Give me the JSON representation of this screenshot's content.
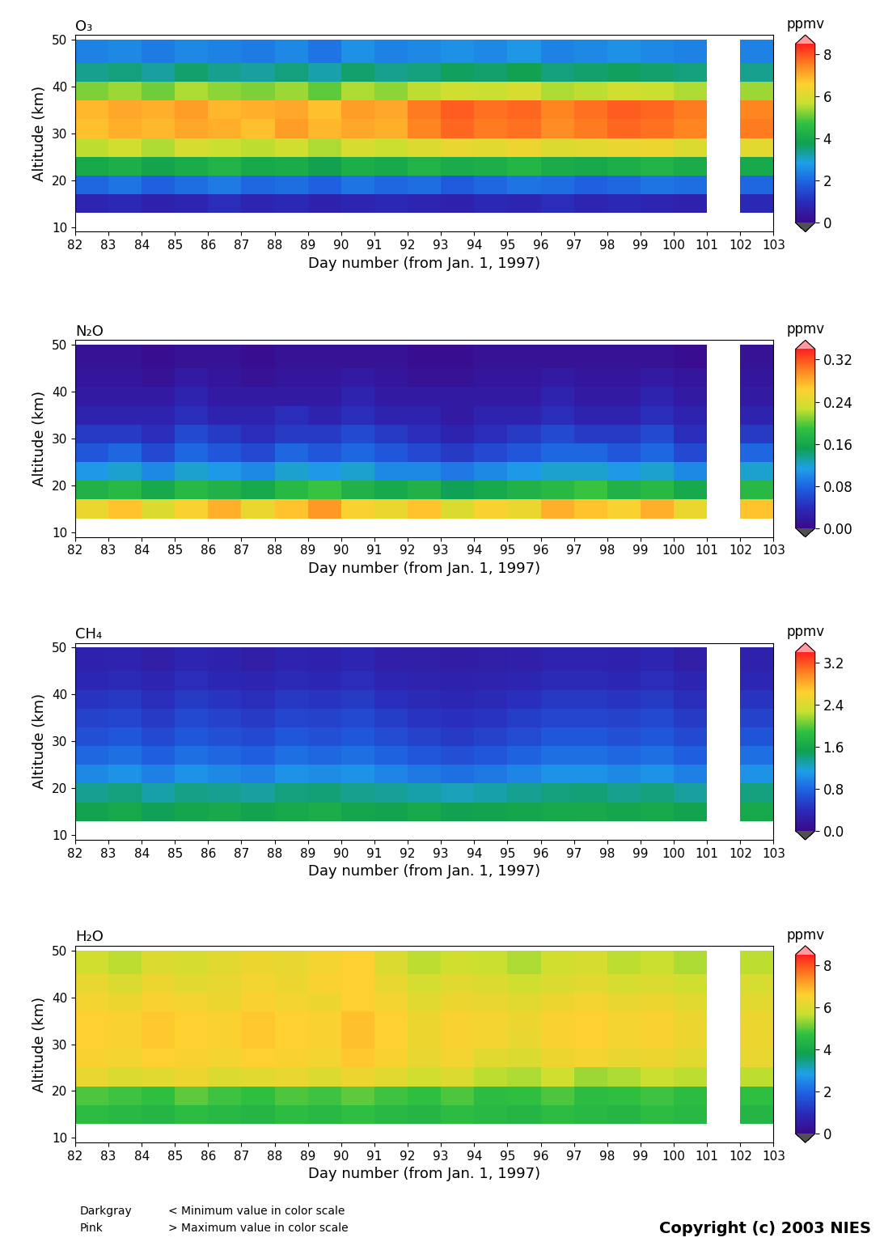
{
  "chart_data": [
    {
      "type": "heatmap",
      "title": "O₃",
      "x_label": "Day number (from Jan. 1, 1997)",
      "y_label": "Altitude (km)",
      "xlim": [
        82,
        103
      ],
      "xticks": [
        82,
        83,
        84,
        85,
        86,
        87,
        88,
        89,
        90,
        91,
        92,
        93,
        94,
        95,
        96,
        97,
        98,
        99,
        100,
        101,
        102,
        103
      ],
      "ylim": [
        9,
        51
      ],
      "yticks": [
        10,
        20,
        30,
        40,
        50
      ],
      "x_edges": [
        82,
        83,
        84,
        85,
        86,
        87,
        88,
        89,
        90,
        91,
        92,
        93,
        94,
        95,
        96,
        97,
        98,
        99,
        100,
        101,
        102,
        103
      ],
      "y_edges": [
        13,
        17,
        21,
        25,
        29,
        33,
        37,
        41,
        45,
        50
      ],
      "cells": [
        [
          0.8,
          0.9,
          0.7,
          0.8,
          1.0,
          0.8,
          0.9,
          0.7,
          0.8,
          0.9,
          0.8,
          0.7,
          0.9,
          0.8,
          1.0,
          0.8,
          0.9,
          0.8,
          0.7,
          null,
          0.9
        ],
        [
          2.0,
          2.2,
          1.9,
          2.1,
          2.3,
          2.0,
          2.1,
          1.9,
          2.2,
          2.0,
          2.1,
          1.8,
          2.0,
          2.2,
          2.1,
          1.9,
          2.0,
          2.2,
          2.1,
          null,
          2.0
        ],
        [
          4.0,
          4.2,
          3.9,
          4.1,
          4.3,
          4.0,
          4.1,
          3.8,
          4.2,
          4.0,
          4.3,
          4.1,
          4.2,
          4.4,
          4.1,
          4.0,
          4.2,
          4.3,
          4.1,
          null,
          4.0
        ],
        [
          5.6,
          5.8,
          5.5,
          5.9,
          5.7,
          5.6,
          5.8,
          5.5,
          5.9,
          5.7,
          6.0,
          6.2,
          6.1,
          6.3,
          6.0,
          6.1,
          6.2,
          6.3,
          6.0,
          null,
          6.1
        ],
        [
          6.8,
          7.0,
          6.9,
          7.1,
          7.0,
          6.8,
          7.2,
          6.9,
          7.1,
          7.0,
          7.5,
          7.8,
          7.6,
          7.7,
          7.4,
          7.6,
          7.8,
          7.7,
          7.5,
          null,
          7.6
        ],
        [
          6.9,
          7.1,
          7.0,
          7.2,
          6.9,
          7.0,
          7.1,
          6.8,
          7.2,
          7.1,
          7.6,
          7.9,
          7.7,
          7.8,
          7.5,
          7.7,
          7.9,
          7.8,
          7.6,
          null,
          7.5
        ],
        [
          5.2,
          5.4,
          5.1,
          5.5,
          5.3,
          5.2,
          5.4,
          5.0,
          5.5,
          5.3,
          5.6,
          5.8,
          5.7,
          5.9,
          5.5,
          5.6,
          5.8,
          5.7,
          5.5,
          null,
          5.4
        ],
        [
          3.4,
          3.5,
          3.3,
          3.6,
          3.4,
          3.3,
          3.5,
          3.2,
          3.6,
          3.4,
          3.5,
          3.7,
          3.6,
          3.8,
          3.5,
          3.6,
          3.7,
          3.6,
          3.5,
          null,
          3.4
        ],
        [
          2.4,
          2.5,
          2.3,
          2.5,
          2.4,
          2.3,
          2.5,
          2.2,
          2.6,
          2.4,
          2.5,
          2.6,
          2.5,
          2.7,
          2.4,
          2.5,
          2.6,
          2.5,
          2.4,
          null,
          2.4
        ]
      ],
      "colorbar": {
        "label": "ppmv",
        "range": [
          0,
          8.5
        ],
        "ticks": [
          0,
          2,
          4,
          6,
          8
        ]
      }
    },
    {
      "type": "heatmap",
      "title": "N₂O",
      "x_label": "Day number (from Jan. 1, 1997)",
      "y_label": "Altitude (km)",
      "xlim": [
        82,
        103
      ],
      "xticks": [
        82,
        83,
        84,
        85,
        86,
        87,
        88,
        89,
        90,
        91,
        92,
        93,
        94,
        95,
        96,
        97,
        98,
        99,
        100,
        101,
        102,
        103
      ],
      "ylim": [
        9,
        51
      ],
      "yticks": [
        10,
        20,
        30,
        40,
        50
      ],
      "x_edges": [
        82,
        83,
        84,
        85,
        86,
        87,
        88,
        89,
        90,
        91,
        92,
        93,
        94,
        95,
        96,
        97,
        98,
        99,
        100,
        101,
        102,
        103
      ],
      "y_edges": [
        13,
        17,
        21,
        25,
        29,
        33,
        37,
        41,
        45,
        50
      ],
      "cells": [
        [
          0.25,
          0.27,
          0.24,
          0.26,
          0.28,
          0.25,
          0.27,
          0.29,
          0.26,
          0.25,
          0.27,
          0.24,
          0.26,
          0.25,
          0.28,
          0.27,
          0.26,
          0.28,
          0.25,
          null,
          0.27
        ],
        [
          0.17,
          0.18,
          0.16,
          0.18,
          0.17,
          0.16,
          0.18,
          0.19,
          0.17,
          0.16,
          0.17,
          0.15,
          0.16,
          0.17,
          0.18,
          0.19,
          0.17,
          0.18,
          0.16,
          null,
          0.18
        ],
        [
          0.11,
          0.12,
          0.1,
          0.12,
          0.11,
          0.1,
          0.12,
          0.11,
          0.12,
          0.1,
          0.1,
          0.09,
          0.1,
          0.11,
          0.12,
          0.12,
          0.11,
          0.12,
          0.1,
          null,
          0.12
        ],
        [
          0.07,
          0.08,
          0.06,
          0.08,
          0.07,
          0.06,
          0.08,
          0.07,
          0.08,
          0.07,
          0.06,
          0.05,
          0.06,
          0.07,
          0.08,
          0.08,
          0.07,
          0.08,
          0.06,
          null,
          0.08
        ],
        [
          0.05,
          0.05,
          0.04,
          0.06,
          0.05,
          0.04,
          0.05,
          0.05,
          0.06,
          0.05,
          0.04,
          0.03,
          0.04,
          0.05,
          0.06,
          0.05,
          0.05,
          0.06,
          0.04,
          null,
          0.05
        ],
        [
          0.03,
          0.03,
          0.03,
          0.04,
          0.03,
          0.03,
          0.04,
          0.03,
          0.04,
          0.03,
          0.03,
          0.02,
          0.03,
          0.03,
          0.04,
          0.03,
          0.03,
          0.04,
          0.03,
          null,
          0.03
        ],
        [
          0.02,
          0.02,
          0.02,
          0.03,
          0.02,
          0.02,
          0.02,
          0.02,
          0.03,
          0.02,
          0.02,
          0.02,
          0.02,
          0.02,
          0.03,
          0.02,
          0.02,
          0.03,
          0.02,
          null,
          0.02
        ],
        [
          0.015,
          0.015,
          0.01,
          0.02,
          0.015,
          0.01,
          0.015,
          0.015,
          0.02,
          0.015,
          0.01,
          0.01,
          0.015,
          0.015,
          0.02,
          0.015,
          0.015,
          0.02,
          0.015,
          null,
          0.015
        ],
        [
          0.01,
          0.01,
          0.005,
          0.01,
          0.01,
          0.005,
          0.01,
          0.01,
          0.01,
          0.01,
          0.005,
          0.005,
          0.01,
          0.01,
          0.01,
          0.01,
          0.01,
          0.01,
          0.005,
          null,
          0.01
        ]
      ],
      "colorbar": {
        "label": "ppmv",
        "range": [
          0,
          0.34
        ],
        "ticks": [
          {
            "value": 0,
            "label": "0.00"
          },
          {
            "value": 0.08,
            "label": "0.08"
          },
          {
            "value": 0.16,
            "label": "0.16"
          },
          {
            "value": 0.24,
            "label": "0.24"
          },
          {
            "value": 0.32,
            "label": "0.32"
          }
        ]
      }
    },
    {
      "type": "heatmap",
      "title": "CH₄",
      "x_label": "Day number (from Jan. 1, 1997)",
      "y_label": "Altitude (km)",
      "xlim": [
        82,
        103
      ],
      "xticks": [
        82,
        83,
        84,
        85,
        86,
        87,
        88,
        89,
        90,
        91,
        92,
        93,
        94,
        95,
        96,
        97,
        98,
        99,
        100,
        101,
        102,
        103
      ],
      "ylim": [
        9,
        51
      ],
      "yticks": [
        10,
        20,
        30,
        40,
        50
      ],
      "x_edges": [
        82,
        83,
        84,
        85,
        86,
        87,
        88,
        89,
        90,
        91,
        92,
        93,
        94,
        95,
        96,
        97,
        98,
        99,
        100,
        101,
        102,
        103
      ],
      "y_edges": [
        13,
        17,
        21,
        25,
        29,
        33,
        37,
        41,
        45,
        50
      ],
      "cells": [
        [
          1.55,
          1.6,
          1.5,
          1.58,
          1.62,
          1.55,
          1.6,
          1.65,
          1.57,
          1.55,
          1.6,
          1.52,
          1.55,
          1.58,
          1.6,
          1.62,
          1.57,
          1.6,
          1.55,
          null,
          1.6
        ],
        [
          1.35,
          1.4,
          1.3,
          1.38,
          1.35,
          1.32,
          1.4,
          1.42,
          1.36,
          1.33,
          1.3,
          1.25,
          1.3,
          1.35,
          1.4,
          1.42,
          1.36,
          1.4,
          1.32,
          null,
          1.4
        ],
        [
          1.0,
          1.05,
          0.95,
          1.05,
          1.0,
          0.95,
          1.05,
          1.02,
          1.05,
          0.98,
          0.9,
          0.85,
          0.9,
          0.98,
          1.05,
          1.05,
          1.0,
          1.05,
          0.95,
          null,
          1.05
        ],
        [
          0.8,
          0.85,
          0.75,
          0.85,
          0.8,
          0.75,
          0.85,
          0.8,
          0.85,
          0.78,
          0.7,
          0.65,
          0.7,
          0.78,
          0.85,
          0.85,
          0.8,
          0.85,
          0.75,
          null,
          0.85
        ],
        [
          0.65,
          0.7,
          0.6,
          0.7,
          0.65,
          0.6,
          0.7,
          0.65,
          0.7,
          0.62,
          0.55,
          0.5,
          0.55,
          0.62,
          0.7,
          0.7,
          0.65,
          0.7,
          0.6,
          null,
          0.68
        ],
        [
          0.55,
          0.58,
          0.5,
          0.6,
          0.55,
          0.5,
          0.58,
          0.55,
          0.6,
          0.52,
          0.45,
          0.42,
          0.45,
          0.52,
          0.58,
          0.58,
          0.55,
          0.6,
          0.5,
          null,
          0.55
        ],
        [
          0.45,
          0.48,
          0.4,
          0.5,
          0.45,
          0.4,
          0.48,
          0.45,
          0.5,
          0.42,
          0.38,
          0.35,
          0.38,
          0.42,
          0.48,
          0.48,
          0.45,
          0.5,
          0.4,
          null,
          0.45
        ],
        [
          0.35,
          0.38,
          0.32,
          0.4,
          0.35,
          0.32,
          0.38,
          0.35,
          0.4,
          0.33,
          0.3,
          0.28,
          0.3,
          0.33,
          0.38,
          0.38,
          0.35,
          0.4,
          0.32,
          null,
          0.35
        ],
        [
          0.28,
          0.3,
          0.25,
          0.32,
          0.28,
          0.25,
          0.3,
          0.28,
          0.32,
          0.26,
          0.24,
          0.22,
          0.24,
          0.26,
          0.3,
          0.3,
          0.28,
          0.32,
          0.25,
          null,
          0.28
        ]
      ],
      "colorbar": {
        "label": "ppmv",
        "range": [
          0,
          3.4
        ],
        "ticks": [
          {
            "value": 0,
            "label": "0.0"
          },
          0.8,
          1.6,
          2.4,
          3.2
        ]
      }
    },
    {
      "type": "heatmap",
      "title": "H₂O",
      "x_label": "Day number (from Jan. 1, 1997)",
      "y_label": "Altitude (km)",
      "xlim": [
        82,
        103
      ],
      "xticks": [
        82,
        83,
        84,
        85,
        86,
        87,
        88,
        89,
        90,
        91,
        92,
        93,
        94,
        95,
        96,
        97,
        98,
        99,
        100,
        101,
        102,
        103
      ],
      "ylim": [
        9,
        51
      ],
      "yticks": [
        10,
        20,
        30,
        40,
        50
      ],
      "x_edges": [
        82,
        83,
        84,
        85,
        86,
        87,
        88,
        89,
        90,
        91,
        92,
        93,
        94,
        95,
        96,
        97,
        98,
        99,
        100,
        101,
        102,
        103
      ],
      "y_edges": [
        13,
        17,
        21,
        25,
        29,
        33,
        37,
        41,
        45,
        50
      ],
      "cells": [
        [
          4.6,
          4.5,
          4.4,
          4.6,
          4.5,
          4.4,
          4.6,
          4.5,
          4.7,
          4.5,
          4.4,
          4.6,
          4.5,
          4.4,
          4.6,
          4.5,
          4.4,
          4.6,
          4.5,
          null,
          4.4
        ],
        [
          4.9,
          4.8,
          4.7,
          5.0,
          4.8,
          4.7,
          4.9,
          4.8,
          5.0,
          4.8,
          4.7,
          4.9,
          4.6,
          4.7,
          4.9,
          4.6,
          4.7,
          4.8,
          4.6,
          null,
          4.7
        ],
        [
          6.2,
          6.0,
          6.1,
          6.3,
          6.0,
          6.1,
          6.2,
          6.0,
          6.3,
          6.1,
          5.8,
          6.0,
          5.6,
          5.5,
          5.8,
          5.4,
          5.5,
          5.7,
          5.6,
          null,
          5.6
        ],
        [
          6.5,
          6.4,
          6.6,
          6.5,
          6.4,
          6.6,
          6.5,
          6.4,
          6.7,
          6.5,
          6.2,
          6.4,
          6.1,
          6.0,
          6.3,
          6.4,
          6.2,
          6.3,
          6.1,
          null,
          6.2
        ],
        [
          6.6,
          6.5,
          6.7,
          6.6,
          6.5,
          6.7,
          6.6,
          6.5,
          6.8,
          6.6,
          6.3,
          6.5,
          6.4,
          6.2,
          6.5,
          6.6,
          6.4,
          6.5,
          6.3,
          null,
          6.3
        ],
        [
          6.6,
          6.5,
          6.7,
          6.6,
          6.5,
          6.7,
          6.6,
          6.5,
          6.8,
          6.6,
          6.3,
          6.5,
          6.4,
          6.3,
          6.5,
          6.6,
          6.4,
          6.5,
          6.3,
          null,
          6.3
        ],
        [
          6.4,
          6.3,
          6.5,
          6.4,
          6.3,
          6.5,
          6.4,
          6.3,
          6.6,
          6.4,
          6.1,
          6.3,
          6.2,
          6.1,
          6.3,
          6.4,
          6.2,
          6.3,
          6.1,
          null,
          6.1
        ],
        [
          6.2,
          6.0,
          6.3,
          6.1,
          6.2,
          6.4,
          6.3,
          6.5,
          6.6,
          6.2,
          5.9,
          6.1,
          6.0,
          5.8,
          6.0,
          6.1,
          5.9,
          6.0,
          5.8,
          null,
          5.9
        ],
        [
          5.8,
          5.6,
          6.0,
          5.9,
          6.1,
          6.3,
          6.2,
          6.4,
          6.6,
          6.0,
          5.6,
          5.8,
          5.7,
          5.5,
          5.8,
          5.9,
          5.6,
          5.7,
          5.5,
          null,
          5.6
        ]
      ],
      "colorbar": {
        "label": "ppmv",
        "range": [
          0,
          8.5
        ],
        "ticks": [
          0,
          2,
          4,
          6,
          8
        ]
      }
    }
  ],
  "footer": {
    "notes": [
      [
        "Darkgray",
        "< Minimum value in color scale"
      ],
      [
        "Pink",
        "> Maximum value in color scale"
      ]
    ],
    "copyright": "Copyright (c) 2003 NIES"
  }
}
